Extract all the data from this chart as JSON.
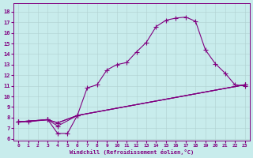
{
  "xlabel": "Windchill (Refroidissement éolien,°C)",
  "bg_color": "#c8ecec",
  "line_color": "#800080",
  "grid_color": "#b0d0d0",
  "xlim": [
    -0.5,
    23.5
  ],
  "ylim": [
    5.8,
    18.8
  ],
  "xticks": [
    0,
    1,
    2,
    3,
    4,
    5,
    6,
    7,
    8,
    9,
    10,
    11,
    12,
    13,
    14,
    15,
    16,
    17,
    18,
    19,
    20,
    21,
    22,
    23
  ],
  "yticks": [
    6,
    7,
    8,
    9,
    10,
    11,
    12,
    13,
    14,
    15,
    16,
    17,
    18
  ],
  "line1_x": [
    0,
    1,
    3,
    4,
    5,
    6,
    7,
    8,
    9,
    10,
    11,
    12,
    13,
    14,
    15,
    16,
    17,
    18,
    19,
    20,
    21,
    22,
    23
  ],
  "line1_y": [
    7.6,
    7.6,
    7.8,
    6.5,
    6.5,
    8.2,
    10.8,
    11.1,
    12.5,
    13.0,
    13.2,
    14.2,
    15.1,
    16.6,
    17.2,
    17.4,
    17.5,
    17.1,
    14.4,
    13.1,
    12.2,
    11.1,
    11.0
  ],
  "line2_x": [
    0,
    3,
    4,
    6,
    23
  ],
  "line2_y": [
    7.6,
    7.8,
    7.5,
    8.2,
    11.1
  ],
  "line3_x": [
    0,
    3,
    4,
    6,
    23
  ],
  "line3_y": [
    7.6,
    7.8,
    7.2,
    8.2,
    11.1
  ],
  "line4_x": [
    0,
    3,
    4,
    6,
    23
  ],
  "line4_y": [
    7.6,
    7.8,
    7.5,
    8.2,
    11.1
  ]
}
